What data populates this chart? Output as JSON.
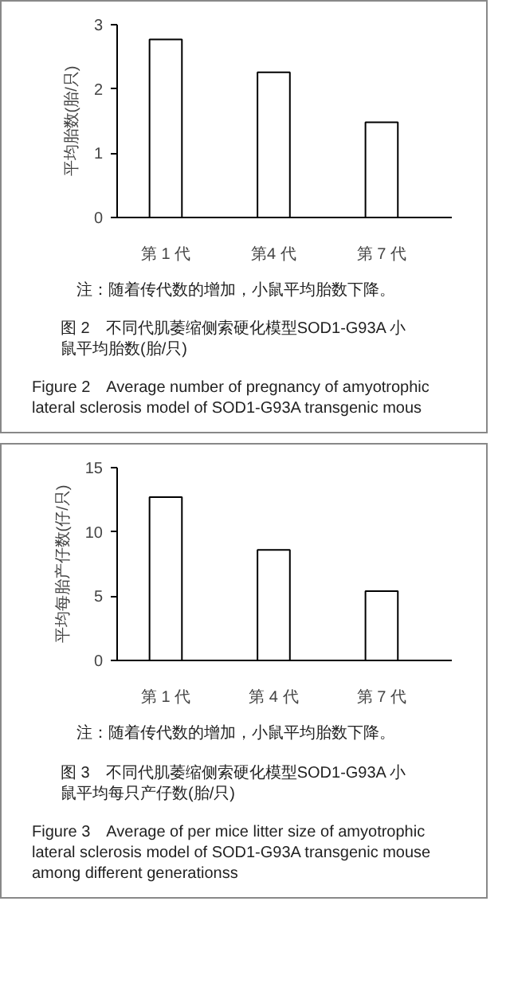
{
  "chart_data": [
    {
      "type": "bar",
      "title": "图 2　不同代肌萎缩侧索硬化模型SOD1-G93A 小鼠平均胎数(胎/只)",
      "subtitle": "Figure 2　Average number of pregnancy of amyotrophic lateral sclerosis model of SOD1-G93A transgenic mous",
      "ylabel": "平均胎数(胎/只)",
      "annotations": [
        "注：随着传代数的增加，小鼠平均胎数下降。"
      ],
      "categories": [
        "第 1 代",
        "第4 代",
        "第 7 代"
      ],
      "values": [
        2.77,
        2.26,
        1.48
      ],
      "color": "#ffffff",
      "ylim": [
        0,
        3
      ],
      "yticks": [
        0,
        1,
        2,
        3
      ],
      "grid": false,
      "legend": false
    },
    {
      "type": "bar",
      "title": "图 3　不同代肌萎缩侧索硬化模型SOD1-G93A 小鼠平均每只产仔数(胎/只)",
      "subtitle": "Figure 3　Average of per mice litter size of amyotrophic lateral sclerosis model of SOD1-G93A transgenic mouse among different generationss",
      "ylabel": "平均每胎产仔数(仔/只)",
      "annotations": [
        "注：随着传代数的增加，小鼠平均胎数下降。"
      ],
      "categories": [
        "第 1 代",
        "第 4 代",
        "第 7 代"
      ],
      "values": [
        12.7,
        8.6,
        5.4
      ],
      "color": "#ffffff",
      "ylim": [
        0,
        15
      ],
      "yticks": [
        0,
        5,
        10,
        15
      ],
      "grid": false,
      "legend": false
    }
  ]
}
